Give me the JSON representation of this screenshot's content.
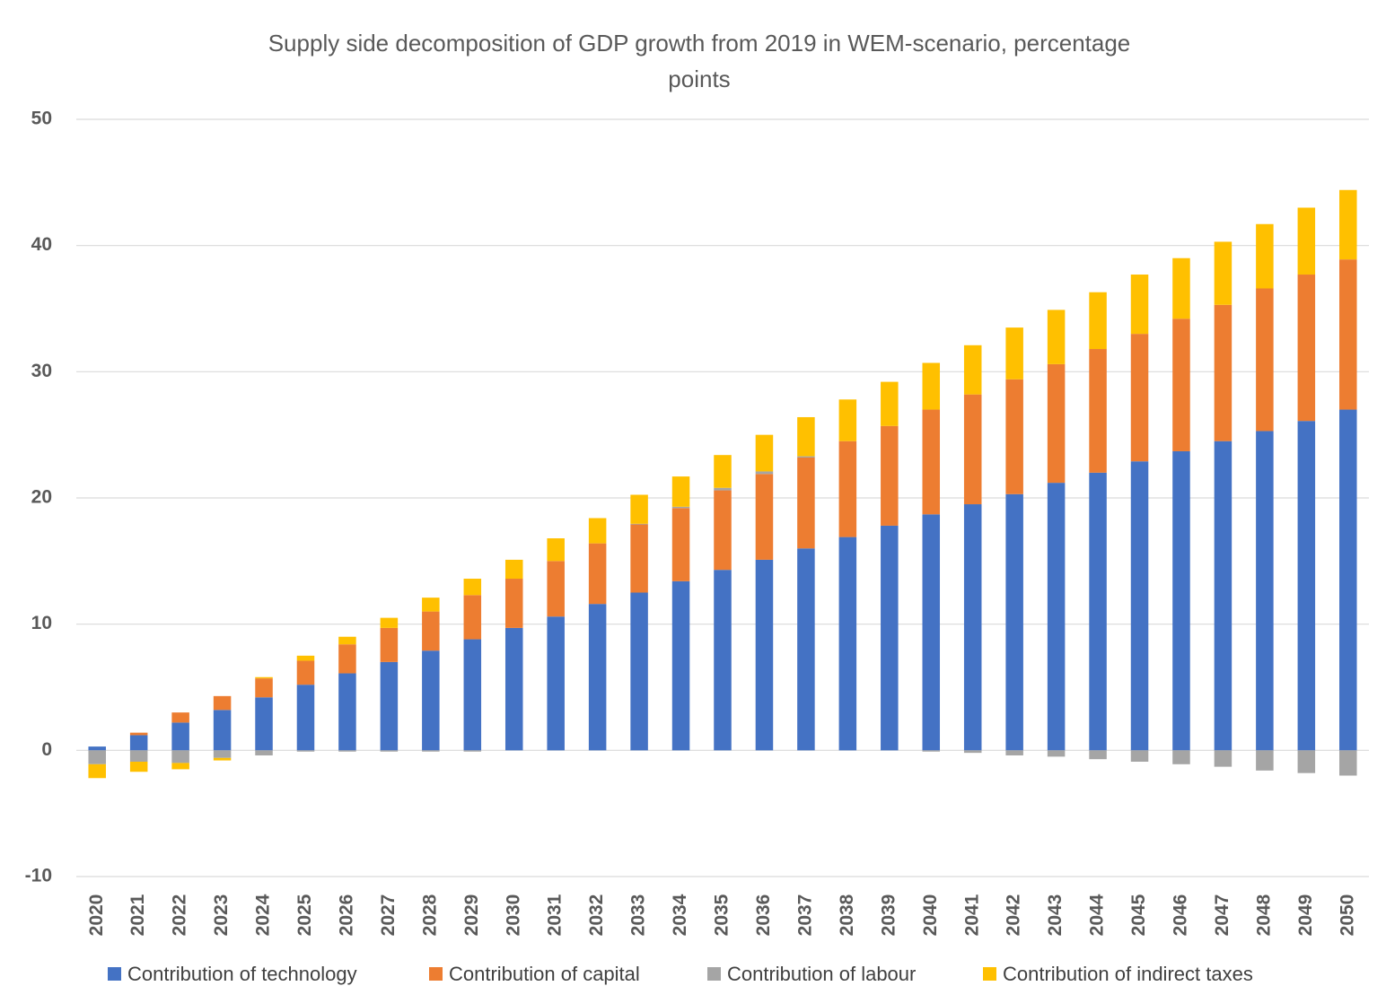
{
  "chart_data": {
    "type": "stacked_bar",
    "title": "Supply side decomposition of GDP growth from 2019 in WEM-scenario, percentage points",
    "categories": [
      "2020",
      "2021",
      "2022",
      "2023",
      "2024",
      "2025",
      "2026",
      "2027",
      "2028",
      "2029",
      "2030",
      "2031",
      "2032",
      "2033",
      "2034",
      "2035",
      "2036",
      "2037",
      "2038",
      "2039",
      "2040",
      "2041",
      "2042",
      "2043",
      "2044",
      "2045",
      "2046",
      "2047",
      "2048",
      "2049",
      "2050"
    ],
    "series": [
      {
        "name": "Contribution of technology",
        "color": "#4472c4",
        "values": [
          0.3,
          1.2,
          2.2,
          3.2,
          4.2,
          5.2,
          6.1,
          7.0,
          7.9,
          8.8,
          9.7,
          10.6,
          11.6,
          12.5,
          13.4,
          14.3,
          15.1,
          16.0,
          16.9,
          17.8,
          18.7,
          19.5,
          20.3,
          21.2,
          22.0,
          22.9,
          23.7,
          24.5,
          25.3,
          26.1,
          27.0
        ]
      },
      {
        "name": "Contribution of capital",
        "color": "#ed7d31",
        "values": [
          0,
          0.2,
          0.8,
          1.1,
          1.5,
          1.9,
          2.3,
          2.7,
          3.1,
          3.5,
          3.9,
          4.4,
          4.8,
          5.4,
          5.8,
          6.3,
          6.8,
          7.2,
          7.6,
          7.9,
          8.3,
          8.7,
          9.1,
          9.4,
          9.8,
          10.1,
          10.5,
          10.8,
          11.3,
          11.6,
          11.9
        ]
      },
      {
        "name": "Contribution of labour",
        "color": "#a5a5a5",
        "values": [
          -1.1,
          -0.9,
          -1.0,
          -0.6,
          -0.4,
          -0.1,
          -0.1,
          -0.1,
          -0.1,
          -0.1,
          0,
          0,
          0,
          0.05,
          0.1,
          0.2,
          0.2,
          0.1,
          0,
          0,
          -0.1,
          -0.2,
          -0.4,
          -0.5,
          -0.7,
          -0.9,
          -1.1,
          -1.3,
          -1.6,
          -1.8,
          -2.0
        ]
      },
      {
        "name": "Contribution of indirect taxes",
        "color": "#ffc000",
        "values": [
          -1.1,
          -0.8,
          -0.5,
          -0.2,
          0.1,
          0.4,
          0.6,
          0.8,
          1.1,
          1.3,
          1.5,
          1.8,
          2.0,
          2.3,
          2.4,
          2.6,
          2.9,
          3.1,
          3.3,
          3.5,
          3.7,
          3.9,
          4.1,
          4.3,
          4.5,
          4.7,
          4.8,
          5.0,
          5.1,
          5.3,
          5.5
        ]
      }
    ],
    "ylim": [
      -10,
      50
    ],
    "yticks": [
      -10,
      0,
      10,
      20,
      30,
      40,
      50
    ],
    "grid": true
  }
}
